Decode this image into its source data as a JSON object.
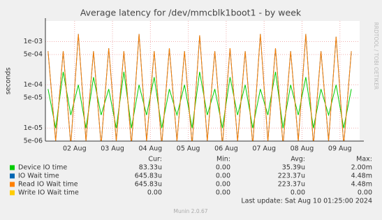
{
  "chart_data": {
    "type": "line",
    "title": "Average latency for /dev/mmcblk1boot1 - by week",
    "y_label": "seconds",
    "side_text": "RRDTOOL / TOBI OETIKER",
    "log_y": true,
    "grid": true,
    "xlim": [
      1.23,
      9.52
    ],
    "xticks": [
      {
        "value": 2,
        "label": "02 Aug"
      },
      {
        "value": 3,
        "label": "03 Aug"
      },
      {
        "value": 4,
        "label": "04 Aug"
      },
      {
        "value": 5,
        "label": "05 Aug"
      },
      {
        "value": 6,
        "label": "06 Aug"
      },
      {
        "value": 7,
        "label": "07 Aug"
      },
      {
        "value": 8,
        "label": "08 Aug"
      },
      {
        "value": 9,
        "label": "09 Aug"
      }
    ],
    "ylim": [
      5e-06,
      0.003
    ],
    "yticks": [
      {
        "value": 5e-06,
        "label": "5e-06"
      },
      {
        "value": 1e-05,
        "label": "1e-05"
      },
      {
        "value": 5e-05,
        "label": "5e-05"
      },
      {
        "value": 0.0001,
        "label": "1e-04"
      },
      {
        "value": 0.0005,
        "label": "5e-04"
      },
      {
        "value": 0.001,
        "label": "1e-03"
      }
    ],
    "x": [
      1.3,
      1.5,
      1.7,
      1.9,
      2.1,
      2.3,
      2.5,
      2.7,
      2.9,
      3.1,
      3.3,
      3.5,
      3.7,
      3.9,
      4.1,
      4.3,
      4.5,
      4.7,
      4.9,
      5.1,
      5.3,
      5.5,
      5.7,
      5.9,
      6.1,
      6.3,
      6.5,
      6.7,
      6.9,
      7.1,
      7.3,
      7.5,
      7.7,
      7.9,
      8.1,
      8.3,
      8.5,
      8.7,
      8.9,
      9.1,
      9.3
    ],
    "stat_headers": [
      "Cur:",
      "Min:",
      "Avg:",
      "Max:"
    ],
    "series": [
      {
        "name": "Device IO time",
        "color": "#00cc00",
        "stats": [
          "83.33u",
          "0.00",
          "35.39u",
          "2.00m"
        ],
        "values": [
          8e-05,
          1e-05,
          0.0002,
          2e-05,
          0.0001,
          1e-05,
          0.00015,
          2e-05,
          8e-05,
          1e-05,
          0.0002,
          1e-05,
          0.0001,
          2e-05,
          0.00015,
          1e-05,
          8e-05,
          2e-05,
          0.0001,
          1e-05,
          0.0002,
          2e-05,
          8e-05,
          1e-05,
          0.00015,
          2e-05,
          0.0001,
          1e-05,
          8e-05,
          2e-05,
          0.0002,
          1e-05,
          0.0001,
          2e-05,
          0.00015,
          1e-05,
          8e-05,
          2e-05,
          0.0001,
          1e-05,
          8e-05
        ]
      },
      {
        "name": "IO Wait time",
        "color": "#0066b3",
        "stats": [
          "645.83u",
          "0.00",
          "223.37u",
          "4.48m"
        ],
        "values": [
          0.0006,
          5e-06,
          0.0006,
          4e-06,
          0.0015,
          5e-06,
          0.0006,
          4e-06,
          0.0007,
          5e-06,
          0.0006,
          4e-06,
          0.0015,
          5e-06,
          0.0006,
          4e-06,
          0.0007,
          5e-06,
          0.0006,
          4e-06,
          0.0014,
          5e-06,
          0.0006,
          4e-06,
          0.0007,
          5e-06,
          0.0006,
          4e-06,
          0.0015,
          5e-06,
          0.0007,
          4e-06,
          0.0006,
          5e-06,
          0.0015,
          4e-06,
          0.0006,
          5e-06,
          0.0013,
          4e-06,
          0.0006
        ]
      },
      {
        "name": "Read IO Wait time",
        "color": "#ff8000",
        "stats": [
          "645.83u",
          "0.00",
          "223.37u",
          "4.48m"
        ],
        "values": [
          0.0006,
          5e-06,
          0.0006,
          4e-06,
          0.0015,
          5e-06,
          0.0006,
          4e-06,
          0.0007,
          5e-06,
          0.0006,
          4e-06,
          0.0015,
          5e-06,
          0.0006,
          4e-06,
          0.0007,
          5e-06,
          0.0006,
          4e-06,
          0.0014,
          5e-06,
          0.0006,
          4e-06,
          0.0007,
          5e-06,
          0.0006,
          4e-06,
          0.0015,
          5e-06,
          0.0007,
          4e-06,
          0.0006,
          5e-06,
          0.0015,
          4e-06,
          0.0006,
          5e-06,
          0.0013,
          4e-06,
          0.0006
        ]
      },
      {
        "name": "Write IO Wait time",
        "color": "#ffcc00",
        "stats": [
          "0.00",
          "0.00",
          "0.00",
          "0.00"
        ]
      }
    ],
    "last_update": "Last update: Sat Aug 10 01:25:00 2024",
    "footer": "Munin 2.0.67"
  }
}
